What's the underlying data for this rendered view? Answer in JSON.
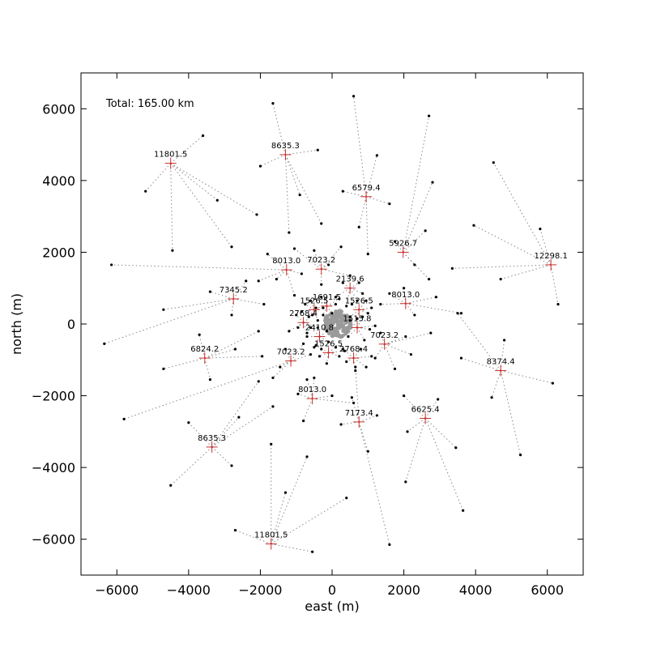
{
  "chart_data": {
    "type": "scatter",
    "xlabel": "east (m)",
    "ylabel": "north (m)",
    "xlim": [
      -7000,
      7000
    ],
    "ylim": [
      -7000,
      7000
    ],
    "xticks": [
      -6000,
      -4000,
      -2000,
      0,
      2000,
      4000,
      6000
    ],
    "yticks": [
      -6000,
      -4000,
      -2000,
      0,
      2000,
      4000,
      6000
    ],
    "grid": false,
    "annotation": "Total: 165.00 km",
    "colors": {
      "cluster_marker": "#cc2b2b",
      "link_line": "#8a8a8a",
      "antenna": "#000000",
      "core": "#9a9a9a"
    },
    "clusters": [
      {
        "label": "11801.5",
        "x": -4500,
        "y": 4480,
        "stations": [
          [
            -5200,
            3700
          ],
          [
            -3600,
            5250
          ],
          [
            -3200,
            3450
          ],
          [
            -2800,
            2150
          ],
          [
            -2100,
            3050
          ],
          [
            -4450,
            2050
          ]
        ]
      },
      {
        "label": "8635.3",
        "x": -1300,
        "y": 4720,
        "stations": [
          [
            -1650,
            6150
          ],
          [
            -400,
            4850
          ],
          [
            -2000,
            4400
          ],
          [
            -900,
            3600
          ],
          [
            -1200,
            2550
          ],
          [
            -300,
            2800
          ]
        ]
      },
      {
        "label": "6579.4",
        "x": 950,
        "y": 3550,
        "stations": [
          [
            600,
            6350
          ],
          [
            1250,
            4700
          ],
          [
            300,
            3700
          ],
          [
            1600,
            3350
          ],
          [
            750,
            2700
          ],
          [
            1000,
            1950
          ]
        ]
      },
      {
        "label": "12298.1",
        "x": 6100,
        "y": 1650,
        "stations": [
          [
            4500,
            4500
          ],
          [
            5800,
            2650
          ],
          [
            3950,
            2750
          ],
          [
            3350,
            1550
          ],
          [
            4700,
            1250
          ],
          [
            6300,
            550
          ]
        ]
      },
      {
        "label": "5926.7",
        "x": 1980,
        "y": 2000,
        "stations": [
          [
            2700,
            5800
          ],
          [
            2800,
            3950
          ],
          [
            2600,
            2600
          ],
          [
            1750,
            2300
          ],
          [
            2300,
            1650
          ],
          [
            2700,
            1250
          ]
        ]
      },
      {
        "label": "7023.2",
        "x": -300,
        "y": 1530,
        "stations": [
          [
            -500,
            2050
          ],
          [
            250,
            2150
          ],
          [
            -1050,
            2100
          ],
          [
            -100,
            1650
          ],
          [
            500,
            1350
          ],
          [
            -300,
            1100
          ]
        ]
      },
      {
        "label": "8013.0",
        "x": -1270,
        "y": 1510,
        "stations": [
          [
            -6150,
            1650
          ],
          [
            -1800,
            1950
          ],
          [
            -1550,
            1250
          ],
          [
            -2050,
            1200
          ],
          [
            -1050,
            800
          ],
          [
            -850,
            1400
          ]
        ]
      },
      {
        "label": "2139.6",
        "x": 500,
        "y": 1000,
        "stations": [
          [
            300,
            1150
          ],
          [
            750,
            1150
          ],
          [
            700,
            650
          ],
          [
            100,
            750
          ],
          [
            850,
            850
          ],
          [
            400,
            500
          ]
        ]
      },
      {
        "label": "7345.2",
        "x": -2750,
        "y": 700,
        "stations": [
          [
            -6350,
            -550
          ],
          [
            -3400,
            900
          ],
          [
            -2400,
            1200
          ],
          [
            -4700,
            400
          ],
          [
            -2800,
            250
          ],
          [
            -1900,
            550
          ]
        ]
      },
      {
        "label": "8013.0",
        "x": 2050,
        "y": 570,
        "stations": [
          [
            3600,
            300
          ],
          [
            1600,
            850
          ],
          [
            2900,
            750
          ],
          [
            1350,
            550
          ],
          [
            2000,
            1000
          ],
          [
            2300,
            250
          ]
        ]
      },
      {
        "label": "1691.5",
        "x": -150,
        "y": 500,
        "stations": [
          [
            100,
            550
          ],
          [
            -450,
            450
          ],
          [
            -300,
            750
          ],
          [
            0,
            300
          ],
          [
            -250,
            250
          ],
          [
            200,
            700
          ]
        ]
      },
      {
        "label": "1526.5",
        "x": -500,
        "y": 400,
        "stations": [
          [
            -750,
            550
          ],
          [
            -650,
            200
          ],
          [
            -250,
            450
          ],
          [
            -850,
            350
          ],
          [
            -400,
            100
          ],
          [
            -600,
            650
          ]
        ]
      },
      {
        "label": "1526.5",
        "x": 750,
        "y": 400,
        "stations": [
          [
            1000,
            300
          ],
          [
            550,
            550
          ],
          [
            950,
            650
          ],
          [
            500,
            200
          ],
          [
            1100,
            450
          ],
          [
            700,
            150
          ]
        ]
      },
      {
        "label": "2768.4",
        "x": -800,
        "y": 40,
        "stations": [
          [
            -1200,
            -200
          ],
          [
            -700,
            -250
          ],
          [
            -550,
            250
          ],
          [
            -1000,
            250
          ],
          [
            -400,
            -100
          ],
          [
            -950,
            -100
          ]
        ]
      },
      {
        "label": "1515.8",
        "x": 700,
        "y": -100,
        "stations": [
          [
            1050,
            -150
          ],
          [
            450,
            -350
          ],
          [
            900,
            -450
          ],
          [
            1200,
            -50
          ],
          [
            500,
            100
          ],
          [
            850,
            200
          ]
        ]
      },
      {
        "label": "2410.8",
        "x": -350,
        "y": -350,
        "stations": [
          [
            -600,
            -100
          ],
          [
            -100,
            -500
          ],
          [
            -500,
            -650
          ],
          [
            -300,
            -700
          ],
          [
            -700,
            -350
          ],
          [
            -150,
            -200
          ]
        ]
      },
      {
        "label": "1526.5",
        "x": -100,
        "y": -800,
        "stations": [
          [
            -350,
            -900
          ],
          [
            200,
            -900
          ],
          [
            100,
            -650
          ],
          [
            -150,
            -1100
          ],
          [
            350,
            -750
          ],
          [
            -450,
            -600
          ]
        ]
      },
      {
        "label": "2768.4",
        "x": 600,
        "y": -950,
        "stations": [
          [
            950,
            -1200
          ],
          [
            400,
            -1050
          ],
          [
            300,
            -700
          ],
          [
            650,
            -1300
          ],
          [
            800,
            -700
          ],
          [
            1100,
            -900
          ]
        ]
      },
      {
        "label": "7023.2",
        "x": 1460,
        "y": -560,
        "stations": [
          [
            1200,
            -950
          ],
          [
            2050,
            -350
          ],
          [
            1750,
            -1250
          ],
          [
            2750,
            -250
          ],
          [
            2200,
            -850
          ],
          [
            1350,
            -250
          ]
        ]
      },
      {
        "label": "6824.2",
        "x": -3550,
        "y": -950,
        "stations": [
          [
            -4700,
            -1250
          ],
          [
            -3700,
            -300
          ],
          [
            -3400,
            -1550
          ],
          [
            -2700,
            -700
          ],
          [
            -2050,
            -200
          ],
          [
            -1950,
            -900
          ]
        ]
      },
      {
        "label": "7023.2",
        "x": -1150,
        "y": -1030,
        "stations": [
          [
            -5800,
            -2650
          ],
          [
            -1650,
            -1500
          ],
          [
            -1450,
            -1200
          ],
          [
            -600,
            -850
          ],
          [
            -800,
            -550
          ],
          [
            -1300,
            -700
          ]
        ]
      },
      {
        "label": "8374.4",
        "x": 4700,
        "y": -1300,
        "stations": [
          [
            3600,
            -950
          ],
          [
            5250,
            -3650
          ],
          [
            4450,
            -2050
          ],
          [
            4800,
            -450
          ],
          [
            6150,
            -1650
          ],
          [
            3500,
            300
          ]
        ]
      },
      {
        "label": "8013.0",
        "x": -550,
        "y": -2080,
        "stations": [
          [
            -950,
            -1950
          ],
          [
            -700,
            -1550
          ],
          [
            0,
            -2000
          ],
          [
            -800,
            -2700
          ],
          [
            600,
            -2200
          ],
          [
            -500,
            -1500
          ]
        ]
      },
      {
        "label": "7173.4",
        "x": 750,
        "y": -2730,
        "stations": [
          [
            1600,
            -6150
          ],
          [
            1000,
            -3550
          ],
          [
            550,
            -2050
          ],
          [
            1250,
            -2550
          ],
          [
            250,
            -2800
          ],
          [
            650,
            -1200
          ]
        ]
      },
      {
        "label": "6625.4",
        "x": 2600,
        "y": -2630,
        "stations": [
          [
            3650,
            -5200
          ],
          [
            2050,
            -4400
          ],
          [
            3450,
            -3450
          ],
          [
            2100,
            -3000
          ],
          [
            2000,
            -2000
          ],
          [
            2950,
            -2100
          ]
        ]
      },
      {
        "label": "8635.3",
        "x": -3350,
        "y": -3430,
        "stations": [
          [
            -4500,
            -4500
          ],
          [
            -2800,
            -3950
          ],
          [
            -4000,
            -2750
          ],
          [
            -1650,
            -2300
          ],
          [
            -2600,
            -2600
          ],
          [
            -2050,
            -1600
          ]
        ]
      },
      {
        "label": "11801.5",
        "x": -1700,
        "y": -6130,
        "stations": [
          [
            -2700,
            -5750
          ],
          [
            -550,
            -6350
          ],
          [
            -1300,
            -4700
          ],
          [
            -700,
            -3700
          ],
          [
            400,
            -4850
          ],
          [
            -1700,
            -3350
          ]
        ]
      }
    ]
  }
}
